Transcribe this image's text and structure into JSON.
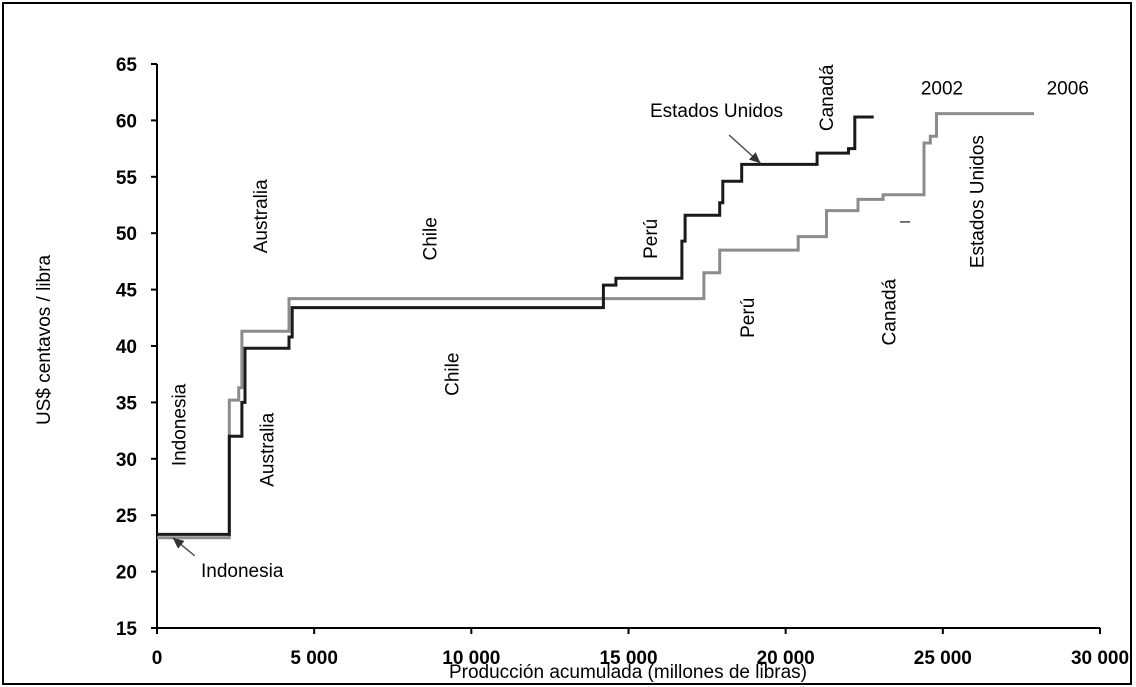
{
  "chart_data": {
    "type": "line",
    "subtype": "step",
    "xlabel": "Producción acumulada (millones de libras)",
    "ylabel": "US$ centavos / libra",
    "xlim": [
      0,
      30000
    ],
    "ylim": [
      15,
      65
    ],
    "x_ticks": [
      0,
      5000,
      10000,
      15000,
      20000,
      25000,
      30000
    ],
    "x_tick_labels": [
      "0",
      "5 000",
      "10 000",
      "15 000",
      "20 000",
      "25 000",
      "30 000"
    ],
    "y_ticks": [
      15,
      20,
      25,
      30,
      35,
      40,
      45,
      50,
      55,
      60,
      65
    ],
    "y_tick_labels": [
      "15",
      "20",
      "25",
      "30",
      "35",
      "40",
      "45",
      "50",
      "55",
      "60",
      "65"
    ],
    "grid": false,
    "series": [
      {
        "name": "2002",
        "color": "#1a1a1a",
        "points": [
          [
            0,
            23.3
          ],
          [
            2300,
            23.3
          ],
          [
            2300,
            32
          ],
          [
            2700,
            32
          ],
          [
            2700,
            35
          ],
          [
            2800,
            35
          ],
          [
            2800,
            39.8
          ],
          [
            4200,
            39.8
          ],
          [
            4200,
            40.8
          ],
          [
            4300,
            40.8
          ],
          [
            4300,
            43.4
          ],
          [
            14200,
            43.4
          ],
          [
            14200,
            45.4
          ],
          [
            14600,
            45.4
          ],
          [
            14600,
            46
          ],
          [
            16700,
            46
          ],
          [
            16700,
            49.3
          ],
          [
            16800,
            49.3
          ],
          [
            16800,
            51.6
          ],
          [
            17900,
            51.6
          ],
          [
            17900,
            52.7
          ],
          [
            18000,
            52.7
          ],
          [
            18000,
            54.6
          ],
          [
            18600,
            54.6
          ],
          [
            18600,
            56.1
          ],
          [
            21000,
            56.1
          ],
          [
            21000,
            57.1
          ],
          [
            22000,
            57.1
          ],
          [
            22000,
            57.5
          ],
          [
            22200,
            57.5
          ],
          [
            22200,
            60.3
          ],
          [
            22800,
            60.3
          ]
        ]
      },
      {
        "name": "2006",
        "color": "#8c8c8c",
        "points": [
          [
            0,
            23
          ],
          [
            2300,
            23
          ],
          [
            2300,
            35.2
          ],
          [
            2600,
            35.2
          ],
          [
            2600,
            36.3
          ],
          [
            2700,
            36.3
          ],
          [
            2700,
            41.3
          ],
          [
            4200,
            41.3
          ],
          [
            4200,
            44.2
          ],
          [
            17400,
            44.2
          ],
          [
            17400,
            46.5
          ],
          [
            17900,
            46.5
          ],
          [
            17900,
            48.5
          ],
          [
            20400,
            48.5
          ],
          [
            20400,
            49.7
          ],
          [
            21300,
            49.7
          ],
          [
            21300,
            52
          ],
          [
            22300,
            52
          ],
          [
            22300,
            53
          ],
          [
            23100,
            53
          ],
          [
            23100,
            53.4
          ],
          [
            24400,
            53.4
          ],
          [
            24400,
            58
          ],
          [
            24600,
            58
          ],
          [
            24600,
            58.6
          ],
          [
            24800,
            58.6
          ],
          [
            24800,
            60.6
          ],
          [
            27900,
            60.6
          ]
        ]
      }
    ],
    "annotations": {
      "year_2002": {
        "text": "2002",
        "x": 24300,
        "y": 62.3,
        "rotate": 0,
        "anchor": "start"
      },
      "year_2006": {
        "text": "2006",
        "x": 28300,
        "y": 62.3,
        "rotate": 0,
        "anchor": "start"
      },
      "estados_unidos_top": {
        "text": "Estados Unidos",
        "x": 17800,
        "y": 60.3,
        "rotate": 0,
        "anchor": "middle"
      },
      "canada_top": {
        "text": "Canadá",
        "x": 21500,
        "y": 62.0,
        "rotate": -90,
        "anchor": "middle"
      },
      "estados_unidos_vertical": {
        "text": "Estados Unidos",
        "x": 26300,
        "y": 52.8,
        "rotate": -90,
        "anchor": "middle"
      },
      "canada_lower": {
        "text": "Canadá",
        "x": 23500,
        "y": 43.0,
        "rotate": -90,
        "anchor": "middle"
      },
      "peru_top": {
        "text": "Perú",
        "x": 15900,
        "y": 49.5,
        "rotate": -90,
        "anchor": "middle"
      },
      "peru_lower": {
        "text": "Perú",
        "x": 19000,
        "y": 42.5,
        "rotate": -90,
        "anchor": "middle"
      },
      "chile_top": {
        "text": "Chile",
        "x": 8900,
        "y": 49.5,
        "rotate": -90,
        "anchor": "middle"
      },
      "chile_lower": {
        "text": "Chile",
        "x": 9600,
        "y": 37.5,
        "rotate": -90,
        "anchor": "middle"
      },
      "australia_top": {
        "text": "Australia",
        "x": 3500,
        "y": 51.5,
        "rotate": -90,
        "anchor": "middle"
      },
      "australia_lower": {
        "text": "Australia",
        "x": 3700,
        "y": 30.8,
        "rotate": -90,
        "anchor": "middle"
      },
      "indonesia_top": {
        "text": "Indonesia",
        "x": 900,
        "y": 33.0,
        "rotate": -90,
        "anchor": "middle"
      },
      "indonesia_bottom": {
        "text": "Indonesia",
        "x": 1400,
        "y": 19.5,
        "rotate": 0,
        "anchor": "start"
      }
    },
    "arrows": {
      "estados_unidos_arrow": {
        "from": [
          18200,
          58.7
        ],
        "to": [
          19200,
          56.2
        ]
      },
      "indonesia_arrow": {
        "from": [
          1200,
          21.4
        ],
        "to": [
          500,
          23.0
        ]
      }
    },
    "marks": {
      "dash_near_2006": {
        "x": 23800,
        "y": 51.0
      }
    }
  }
}
